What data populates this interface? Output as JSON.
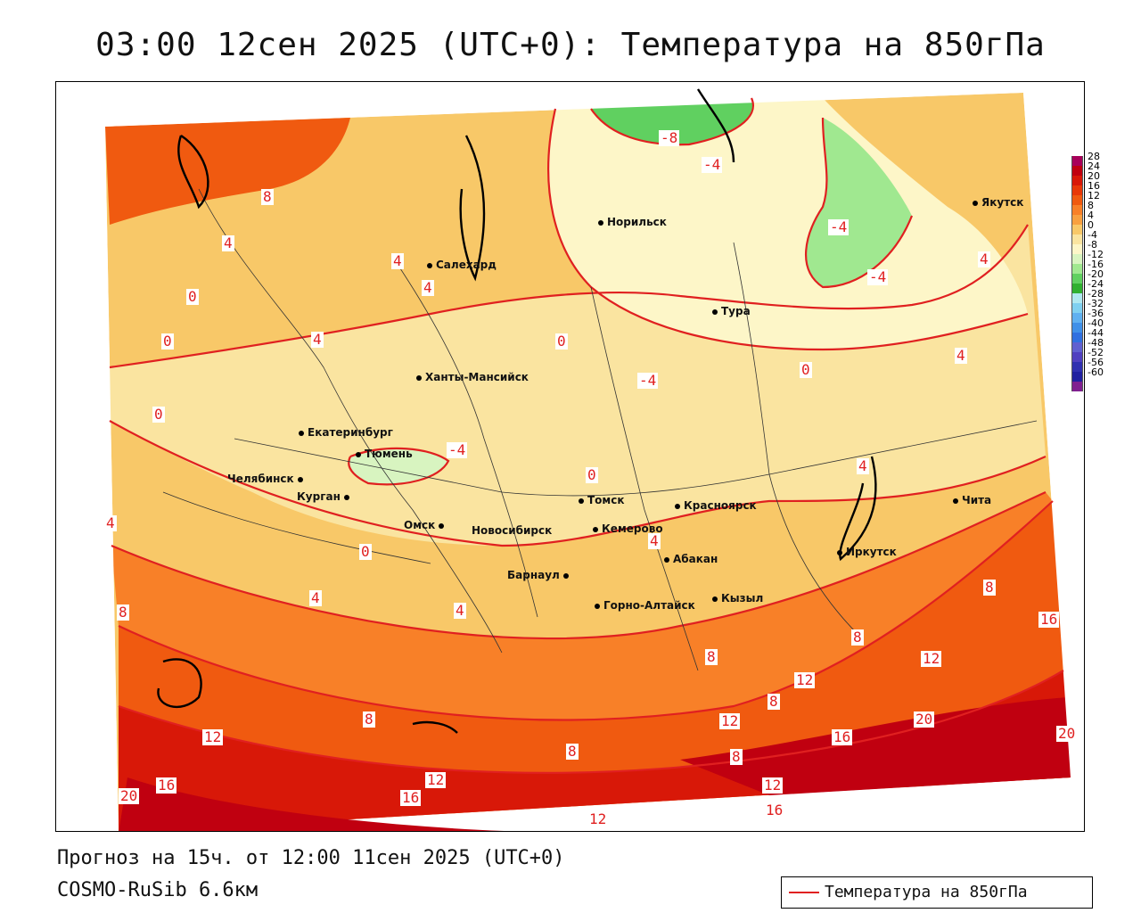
{
  "title": "03:00 12сен 2025 (UTC+0): Температура на 850гПа",
  "forecast_info": "Прогноз на 15ч. от 12:00 11сен 2025 (UTC+0)",
  "model_label": "COSMO-RuSib 6.6км",
  "legend": {
    "label": "Температура на 850гПа",
    "line_color": "#e02020"
  },
  "colorbar": {
    "labels": [
      "28",
      "24",
      "20",
      "16",
      "12",
      "8",
      "4",
      "0",
      "-4",
      "-8",
      "-12",
      "-16",
      "-20",
      "-24",
      "-28",
      "-32",
      "-36",
      "-40",
      "-44",
      "-48",
      "-52",
      "-56",
      "-60"
    ],
    "colors": [
      "#a8005a",
      "#c00010",
      "#d81808",
      "#e83808",
      "#f05a10",
      "#f88028",
      "#f8a040",
      "#f8c868",
      "#fae4a0",
      "#fdf6c8",
      "#d8f4c0",
      "#a0e890",
      "#60d060",
      "#30b030",
      "#b0e8f0",
      "#80d0f0",
      "#60b0f0",
      "#4090e8",
      "#3070e0",
      "#6060d0",
      "#5040c0",
      "#3030b0",
      "#2020a0",
      "#802090"
    ]
  },
  "cities": [
    {
      "name": "Норильск"
    },
    {
      "name": "Якутск"
    },
    {
      "name": "Салехард"
    },
    {
      "name": "Тура"
    },
    {
      "name": "Ханты-Мансийск"
    },
    {
      "name": "Екатеринбург"
    },
    {
      "name": "Тюмень"
    },
    {
      "name": "Челябинск"
    },
    {
      "name": "Курган"
    },
    {
      "name": "Омск"
    },
    {
      "name": "Новосибирск"
    },
    {
      "name": "Томск"
    },
    {
      "name": "Кемерово"
    },
    {
      "name": "Красноярск"
    },
    {
      "name": "Абакан"
    },
    {
      "name": "Барнаул"
    },
    {
      "name": "Кызыл"
    },
    {
      "name": "Горно-Алтайск"
    },
    {
      "name": "Иркутск"
    },
    {
      "name": "Чита"
    }
  ],
  "contour_labels": [
    {
      "v": "-8"
    },
    {
      "v": "-4"
    },
    {
      "v": "-4"
    },
    {
      "v": "-4"
    },
    {
      "v": "-4"
    },
    {
      "v": "-4"
    },
    {
      "v": "8"
    },
    {
      "v": "4"
    },
    {
      "v": "4"
    },
    {
      "v": "4"
    },
    {
      "v": "4"
    },
    {
      "v": "4"
    },
    {
      "v": "4"
    },
    {
      "v": "4"
    },
    {
      "v": "4"
    },
    {
      "v": "4"
    },
    {
      "v": "4"
    },
    {
      "v": "4"
    },
    {
      "v": "0"
    },
    {
      "v": "0"
    },
    {
      "v": "0"
    },
    {
      "v": "0"
    },
    {
      "v": "0"
    },
    {
      "v": "0"
    },
    {
      "v": "0"
    },
    {
      "v": "8"
    },
    {
      "v": "8"
    },
    {
      "v": "8"
    },
    {
      "v": "8"
    },
    {
      "v": "8"
    },
    {
      "v": "8"
    },
    {
      "v": "8"
    },
    {
      "v": "8"
    },
    {
      "v": "12"
    },
    {
      "v": "12"
    },
    {
      "v": "12"
    },
    {
      "v": "12"
    },
    {
      "v": "12"
    },
    {
      "v": "12"
    },
    {
      "v": "12"
    },
    {
      "v": "16"
    },
    {
      "v": "16"
    },
    {
      "v": "16"
    },
    {
      "v": "16"
    },
    {
      "v": "16"
    },
    {
      "v": "20"
    },
    {
      "v": "20"
    },
    {
      "v": "20"
    }
  ]
}
